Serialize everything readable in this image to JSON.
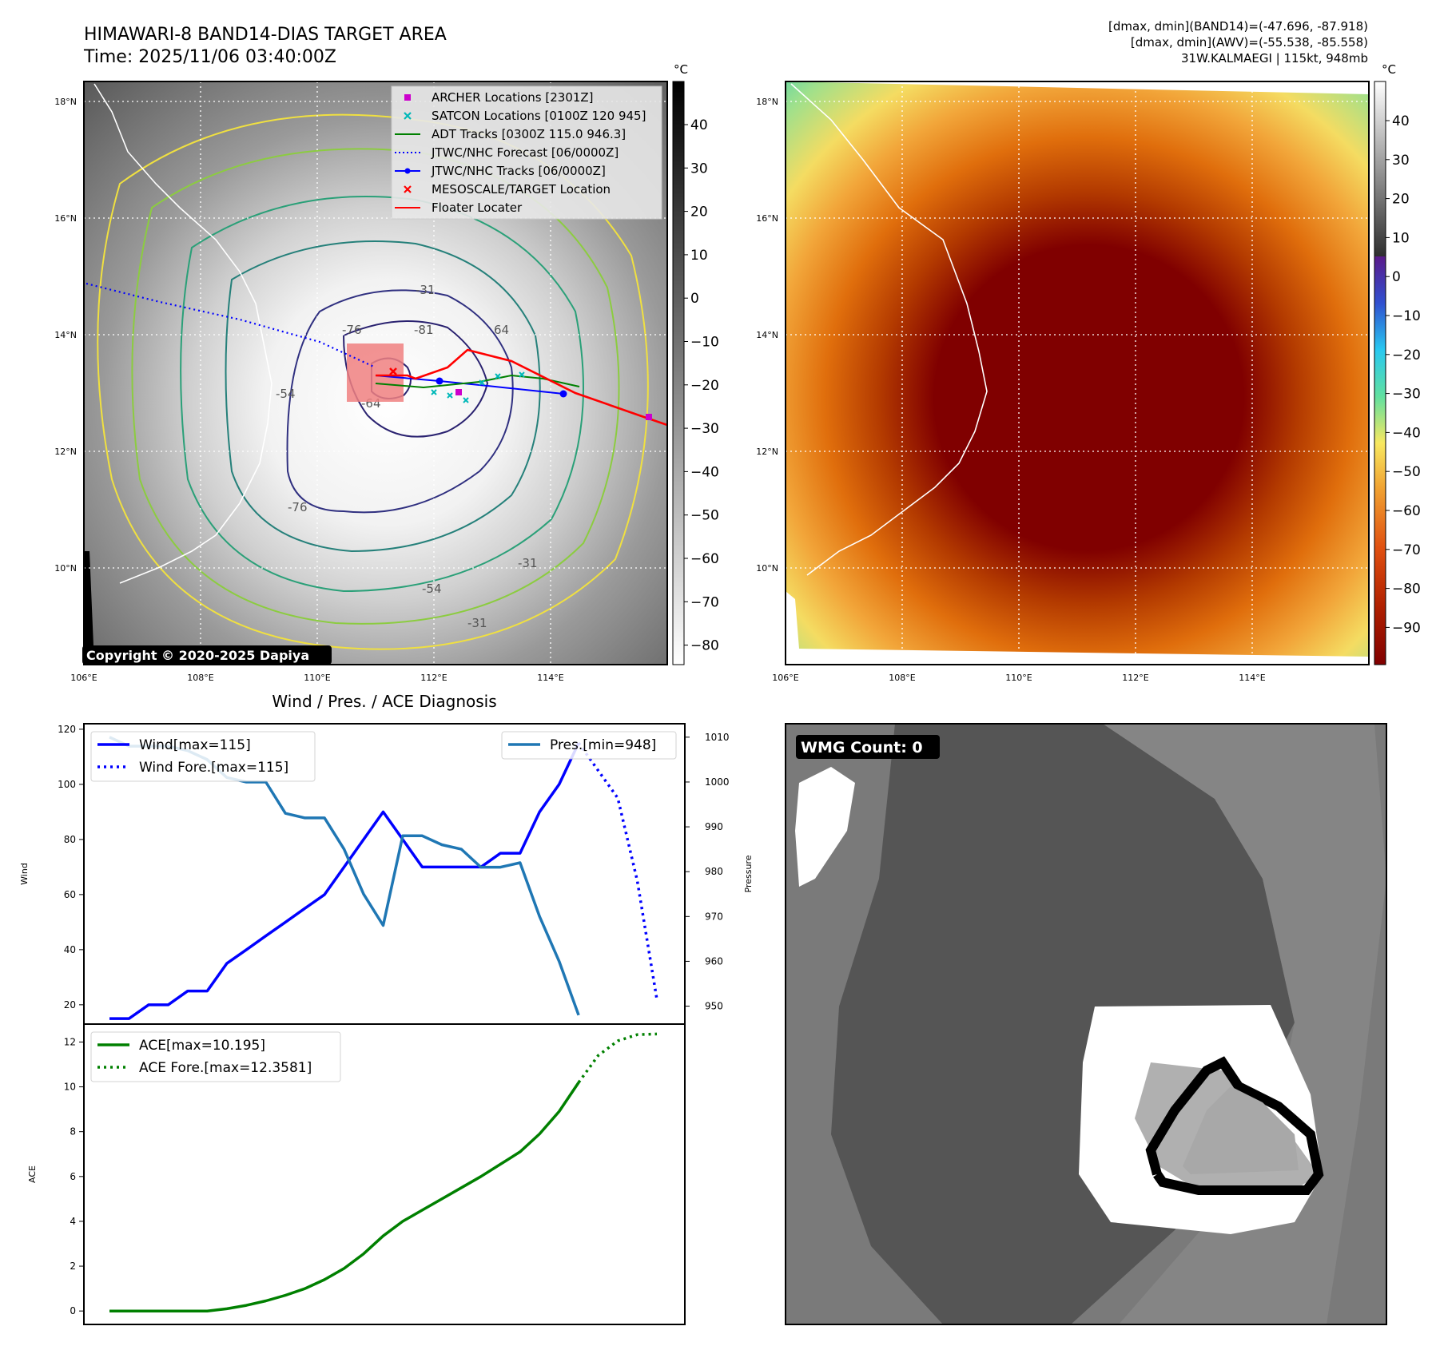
{
  "header": {
    "title_line1": "HIMAWARI-8 BAND14-DIAS TARGET AREA",
    "title_line2": "Time: 2025/11/06 03:40:00Z",
    "info_line1": "[dmax, dmin](BAND14)=(-47.696, -87.918)",
    "info_line2": "[dmax, dmin](AWV)=(-55.538, -85.558)",
    "info_line3": "31W.KALMAEGI | 115kt, 948mb"
  },
  "map_common": {
    "lat_labels": [
      "18°N",
      "16°N",
      "14°N",
      "12°N",
      "10°N"
    ],
    "lon_labels": [
      "106°E",
      "108°E",
      "110°E",
      "112°E",
      "114°E"
    ],
    "unit_label": "°C"
  },
  "map_left": {
    "copyright": "Copyright © 2020-2025 Dapiya",
    "colorbar_ticks": [
      "40",
      "30",
      "20",
      "10",
      "0",
      "−10",
      "−20",
      "−30",
      "−40",
      "−50",
      "−60",
      "−70",
      "−80"
    ],
    "contour_labels": [
      "-81",
      "64",
      "-76",
      "-31",
      "-64",
      "-54",
      "-31",
      "-54",
      "-31",
      "-76"
    ],
    "legend": [
      {
        "label": "ARCHER Locations [2301Z]",
        "color": "#cc00cc",
        "marker": "square"
      },
      {
        "label": "SATCON Locations [0100Z 120 945]",
        "color": "#00b8b8",
        "marker": "x"
      },
      {
        "label": "ADT Tracks [0300Z 115.0 946.3]",
        "color": "#008000",
        "marker": "line"
      },
      {
        "label": "JTWC/NHC Forecast [06/0000Z]",
        "color": "#0000ff",
        "marker": "dotted"
      },
      {
        "label": "JTWC/NHC Tracks [06/0000Z]",
        "color": "#0000ff",
        "marker": "line-dot"
      },
      {
        "label": "MESOSCALE/TARGET Location",
        "color": "#ff0000",
        "marker": "x"
      },
      {
        "label": "Floater Locater",
        "color": "#ff0000",
        "marker": "line"
      }
    ]
  },
  "map_right": {
    "colorbar_ticks": [
      "40",
      "30",
      "20",
      "10",
      "0",
      "−10",
      "−20",
      "−30",
      "−40",
      "−50",
      "−60",
      "−70",
      "−80",
      "−90"
    ]
  },
  "wmg_panel": {
    "label": "WMG Count: 0"
  },
  "chart_data": [
    {
      "type": "line",
      "title": "Wind / Pres. / ACE Diagnosis",
      "xlabel": "",
      "ylabel": "Wind",
      "y2label": "Pressure",
      "ylim": [
        13,
        122
      ],
      "y2lim": [
        946,
        1013
      ],
      "yticks": [
        "20",
        "40",
        "60",
        "80",
        "100",
        "120"
      ],
      "y2ticks": [
        "950",
        "960",
        "970",
        "980",
        "990",
        "1000",
        "1010"
      ],
      "x": [
        0,
        1,
        2,
        3,
        4,
        5,
        6,
        7,
        8,
        9,
        10,
        11,
        12,
        13,
        14,
        15,
        16,
        17,
        18,
        19,
        20,
        21,
        22,
        23,
        24
      ],
      "series": [
        {
          "name": "Wind[max=115]",
          "color": "#0000ff",
          "style": "solid",
          "axis": "left",
          "values": [
            15,
            15,
            20,
            20,
            25,
            25,
            35,
            40,
            45,
            50,
            55,
            60,
            70,
            80,
            90,
            80,
            70,
            70,
            70,
            70,
            75,
            75,
            90,
            100,
            115
          ]
        },
        {
          "name": "Wind Fore.[max=115]",
          "color": "#0000ff",
          "style": "dotted",
          "axis": "left",
          "x": [
            24,
            25,
            26,
            27,
            28
          ],
          "values": [
            115,
            105,
            95,
            65,
            22
          ]
        },
        {
          "name": "Pres.[min=948]",
          "color": "#1f77b4",
          "style": "solid",
          "axis": "right",
          "values": [
            1010,
            1008,
            1008,
            1008,
            1007,
            1005,
            1001,
            1000,
            1000,
            993,
            992,
            992,
            985,
            975,
            968,
            988,
            988,
            986,
            985,
            981,
            981,
            982,
            970,
            960,
            948
          ]
        }
      ]
    },
    {
      "type": "line",
      "ylabel": "ACE",
      "ylim": [
        -0.6,
        12.8
      ],
      "yticks": [
        "0",
        "2",
        "4",
        "6",
        "8",
        "10",
        "12"
      ],
      "x": [
        0,
        1,
        2,
        3,
        4,
        5,
        6,
        7,
        8,
        9,
        10,
        11,
        12,
        13,
        14,
        15,
        16,
        17,
        18,
        19,
        20,
        21,
        22,
        23,
        24
      ],
      "series": [
        {
          "name": "ACE[max=10.195]",
          "color": "#008000",
          "style": "solid",
          "values": [
            0,
            0,
            0,
            0,
            0,
            0,
            0.1,
            0.25,
            0.45,
            0.7,
            1.0,
            1.4,
            1.9,
            2.55,
            3.35,
            4.0,
            4.5,
            5.0,
            5.5,
            6.0,
            6.55,
            7.1,
            7.9,
            8.9,
            10.195
          ]
        },
        {
          "name": "ACE Fore.[max=12.3581]",
          "color": "#008000",
          "style": "dotted",
          "x": [
            24,
            25,
            26,
            27,
            28
          ],
          "values": [
            10.195,
            11.4,
            12.05,
            12.33,
            12.3581
          ]
        }
      ]
    }
  ]
}
